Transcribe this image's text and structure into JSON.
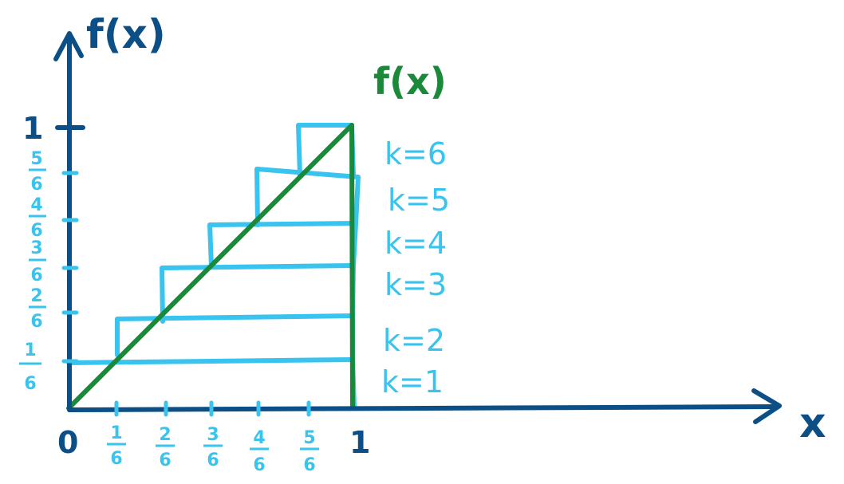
{
  "colors": {
    "axis": "#0b4f86",
    "function": "#1a8a3a",
    "steps": "#38c4ee"
  },
  "axes": {
    "y_label": "f(x)",
    "x_label": "x",
    "origin_label": "0",
    "y_one_label": "1",
    "x_one_label": "1"
  },
  "function_label": "f(x)",
  "y_ticks": [
    {
      "num": "5",
      "den": "6"
    },
    {
      "num": "4",
      "den": "6"
    },
    {
      "num": "3",
      "den": "6"
    },
    {
      "num": "2",
      "den": "6"
    },
    {
      "num": "1",
      "den": "6"
    }
  ],
  "x_ticks": [
    {
      "num": "1",
      "den": "6"
    },
    {
      "num": "2",
      "den": "6"
    },
    {
      "num": "3",
      "den": "6"
    },
    {
      "num": "4",
      "den": "6"
    },
    {
      "num": "5",
      "den": "6"
    }
  ],
  "k_labels": [
    "k=6",
    "k=5",
    "k=4",
    "k=3",
    "k=2",
    "k=1"
  ]
}
